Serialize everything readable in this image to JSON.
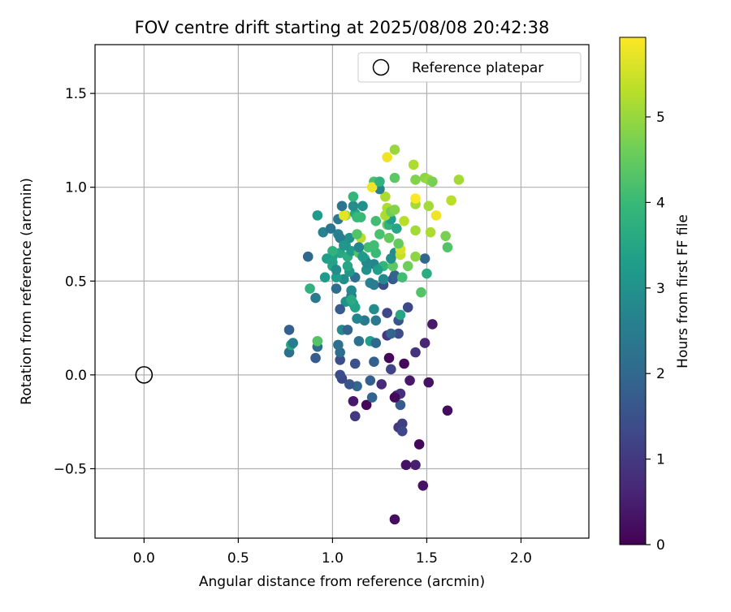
{
  "chart_data": {
    "type": "scatter",
    "title": "FOV centre drift starting at 2025/08/08 20:42:38",
    "xlabel": "Angular distance from reference (arcmin)",
    "ylabel": "Rotation from reference (arcmin)",
    "xlim": [
      -0.26,
      2.36
    ],
    "ylim": [
      -0.87,
      1.76
    ],
    "xticks": [
      "0.0",
      "0.5",
      "1.0",
      "1.5",
      "2.0"
    ],
    "yticks": [
      "−0.5",
      "0.0",
      "0.5",
      "1.0",
      "1.5"
    ],
    "grid": true,
    "legend": {
      "placement": "top-right",
      "entries": [
        "Reference platepar"
      ]
    },
    "reference_point": {
      "x": 0.0,
      "y": 0.0,
      "marker": "open-circle",
      "color": "#000000"
    },
    "colorbar": {
      "label": "Hours from first FF file",
      "range": [
        0,
        5.93
      ],
      "ticks": [
        "0",
        "1",
        "2",
        "3",
        "4",
        "5"
      ],
      "colormap": "viridis"
    },
    "points": [
      [
        1.33,
        -0.77,
        0.2
      ],
      [
        1.48,
        -0.59,
        0.3
      ],
      [
        1.39,
        -0.48,
        0.3
      ],
      [
        1.44,
        -0.48,
        0.5
      ],
      [
        1.46,
        -0.37,
        0.1
      ],
      [
        1.35,
        -0.28,
        1.0
      ],
      [
        1.37,
        -0.26,
        1.1
      ],
      [
        1.37,
        -0.3,
        1.3
      ],
      [
        1.61,
        -0.19,
        0.2
      ],
      [
        1.12,
        -0.22,
        1.0
      ],
      [
        1.18,
        -0.16,
        0.1
      ],
      [
        1.11,
        -0.14,
        0.4
      ],
      [
        1.36,
        -0.16,
        1.7
      ],
      [
        1.34,
        -0.11,
        0.6
      ],
      [
        1.36,
        -0.1,
        0.8
      ],
      [
        1.33,
        -0.12,
        0.1
      ],
      [
        1.21,
        -0.12,
        1.9
      ],
      [
        1.26,
        -0.05,
        0.7
      ],
      [
        1.13,
        -0.06,
        2.0
      ],
      [
        1.09,
        -0.05,
        1.6
      ],
      [
        1.05,
        -0.02,
        1.3
      ],
      [
        1.04,
        0.0,
        1.4
      ],
      [
        1.2,
        -0.03,
        1.8
      ],
      [
        1.41,
        -0.03,
        0.4
      ],
      [
        1.51,
        -0.04,
        0.3
      ],
      [
        1.31,
        0.03,
        1.2
      ],
      [
        1.38,
        0.06,
        0.1
      ],
      [
        1.3,
        0.09,
        0.1
      ],
      [
        1.12,
        0.06,
        1.5
      ],
      [
        1.04,
        0.08,
        1.4
      ],
      [
        1.22,
        0.07,
        1.8
      ],
      [
        0.91,
        0.09,
        1.7
      ],
      [
        1.44,
        0.12,
        0.9
      ],
      [
        1.49,
        0.17,
        0.6
      ],
      [
        1.04,
        0.12,
        2.1
      ],
      [
        1.03,
        0.16,
        2.2
      ],
      [
        0.77,
        0.12,
        2.2
      ],
      [
        0.78,
        0.16,
        3.6
      ],
      [
        0.79,
        0.17,
        2.5
      ],
      [
        0.92,
        0.15,
        2.1
      ],
      [
        0.92,
        0.18,
        4.3
      ],
      [
        1.14,
        0.18,
        2.2
      ],
      [
        1.2,
        0.18,
        3.3
      ],
      [
        1.23,
        0.17,
        2.0
      ],
      [
        1.53,
        0.27,
        0.4
      ],
      [
        0.77,
        0.24,
        1.8
      ],
      [
        1.05,
        0.24,
        2.8
      ],
      [
        1.08,
        0.24,
        1.9
      ],
      [
        1.17,
        0.29,
        2.4
      ],
      [
        1.23,
        0.29,
        2.4
      ],
      [
        1.35,
        0.22,
        1.4
      ],
      [
        1.29,
        0.21,
        1.0
      ],
      [
        1.31,
        0.22,
        1.9
      ],
      [
        1.35,
        0.29,
        1.6
      ],
      [
        1.13,
        0.3,
        2.7
      ],
      [
        1.29,
        0.33,
        1.3
      ],
      [
        1.36,
        0.32,
        3.5
      ],
      [
        1.4,
        0.36,
        1.3
      ],
      [
        1.22,
        0.35,
        2.9
      ],
      [
        1.07,
        0.39,
        3.0
      ],
      [
        1.04,
        0.35,
        1.7
      ],
      [
        0.91,
        0.41,
        2.4
      ],
      [
        0.88,
        0.46,
        3.8
      ],
      [
        1.02,
        0.46,
        2.1
      ],
      [
        1.1,
        0.42,
        2.2
      ],
      [
        1.1,
        0.45,
        2.8
      ],
      [
        1.06,
        0.51,
        2.9
      ],
      [
        1.2,
        0.49,
        2.6
      ],
      [
        1.22,
        0.48,
        2.5
      ],
      [
        1.27,
        0.48,
        1.4
      ],
      [
        1.32,
        0.51,
        1.7
      ],
      [
        1.33,
        0.53,
        1.9
      ],
      [
        1.37,
        0.52,
        4.1
      ],
      [
        1.47,
        0.44,
        4.3
      ],
      [
        1.5,
        0.54,
        3.7
      ],
      [
        1.49,
        0.62,
        2.0
      ],
      [
        0.87,
        0.63,
        2.0
      ],
      [
        0.96,
        0.52,
        3.2
      ],
      [
        1.02,
        0.52,
        3.3
      ],
      [
        1.0,
        0.58,
        3.5
      ],
      [
        1.12,
        0.52,
        2.2
      ],
      [
        1.18,
        0.56,
        3.0
      ],
      [
        1.22,
        0.59,
        2.7
      ],
      [
        1.27,
        0.58,
        3.9
      ],
      [
        1.32,
        0.58,
        4.4
      ],
      [
        1.31,
        0.62,
        3.0
      ],
      [
        1.33,
        0.65,
        2.9
      ],
      [
        1.36,
        0.64,
        5.4
      ],
      [
        1.36,
        0.67,
        5.6
      ],
      [
        1.35,
        0.7,
        4.5
      ],
      [
        1.4,
        0.58,
        4.6
      ],
      [
        1.44,
        0.63,
        4.9
      ],
      [
        1.04,
        0.65,
        3.5
      ],
      [
        1.08,
        0.63,
        3.7
      ],
      [
        1.1,
        0.66,
        3.2
      ],
      [
        1.14,
        0.65,
        4.3
      ],
      [
        1.19,
        0.68,
        4.1
      ],
      [
        1.23,
        0.65,
        4.0
      ],
      [
        1.07,
        0.69,
        3.2
      ],
      [
        1.09,
        0.73,
        3.0
      ],
      [
        1.0,
        0.63,
        3.4
      ],
      [
        1.0,
        0.66,
        3.8
      ],
      [
        0.97,
        0.62,
        3.3
      ],
      [
        1.0,
        0.6,
        3.4
      ],
      [
        1.03,
        0.75,
        2.6
      ],
      [
        1.04,
        0.73,
        2.5
      ],
      [
        1.15,
        0.73,
        5.3
      ],
      [
        1.13,
        0.75,
        4.3
      ],
      [
        1.22,
        0.69,
        4.1
      ],
      [
        1.25,
        0.75,
        4.2
      ],
      [
        1.29,
        0.8,
        4.6
      ],
      [
        1.3,
        0.8,
        3.8
      ],
      [
        1.31,
        0.83,
        3.3
      ],
      [
        1.34,
        0.78,
        3.5
      ],
      [
        1.38,
        0.82,
        5.3
      ],
      [
        1.44,
        0.77,
        5.1
      ],
      [
        1.52,
        0.76,
        5.2
      ],
      [
        1.6,
        0.74,
        4.7
      ],
      [
        1.61,
        0.68,
        4.3
      ],
      [
        0.95,
        0.76,
        2.6
      ],
      [
        0.99,
        0.78,
        2.3
      ],
      [
        1.03,
        0.83,
        2.4
      ],
      [
        1.07,
        0.85,
        5.0
      ],
      [
        1.06,
        0.85,
        5.7
      ],
      [
        1.12,
        0.86,
        3.5
      ],
      [
        1.13,
        0.84,
        4.0
      ],
      [
        1.15,
        0.84,
        4.0
      ],
      [
        1.23,
        0.82,
        4.1
      ],
      [
        1.28,
        0.85,
        5.2
      ],
      [
        1.29,
        0.89,
        5.2
      ],
      [
        1.31,
        0.87,
        4.6
      ],
      [
        1.33,
        0.88,
        4.8
      ],
      [
        0.92,
        0.85,
        3.2
      ],
      [
        1.05,
        0.9,
        2.3
      ],
      [
        1.11,
        0.9,
        2.9
      ],
      [
        1.16,
        0.9,
        3.0
      ],
      [
        1.11,
        0.95,
        3.9
      ],
      [
        1.28,
        0.95,
        5.2
      ],
      [
        1.25,
        0.99,
        2.6
      ],
      [
        1.22,
        1.03,
        4.2
      ],
      [
        1.21,
        1.0,
        5.8
      ],
      [
        1.25,
        1.03,
        3.8
      ],
      [
        1.33,
        1.05,
        4.4
      ],
      [
        1.44,
        0.91,
        5.1
      ],
      [
        1.44,
        0.94,
        5.9
      ],
      [
        1.51,
        0.9,
        5.1
      ],
      [
        1.55,
        0.85,
        5.8
      ],
      [
        1.44,
        1.04,
        4.8
      ],
      [
        1.49,
        1.05,
        4.9
      ],
      [
        1.51,
        1.04,
        5.0
      ],
      [
        1.53,
        1.03,
        4.7
      ],
      [
        1.63,
        0.93,
        5.3
      ],
      [
        1.67,
        1.04,
        5.1
      ],
      [
        1.29,
        1.16,
        5.8
      ],
      [
        1.33,
        1.2,
        5.0
      ],
      [
        1.43,
        1.12,
        5.2
      ],
      [
        1.06,
        0.69,
        3.1
      ],
      [
        1.17,
        0.62,
        3.6
      ],
      [
        1.27,
        0.51,
        2.8
      ],
      [
        1.11,
        0.38,
        3.2
      ],
      [
        1.12,
        0.36,
        3.4
      ],
      [
        1.1,
        0.4,
        3.6
      ],
      [
        1.18,
        0.6,
        2.8
      ],
      [
        1.09,
        0.55,
        3.1
      ],
      [
        1.14,
        0.68,
        2.7
      ],
      [
        1.08,
        0.58,
        3.5
      ],
      [
        1.16,
        0.63,
        3.2
      ],
      [
        1.02,
        0.56,
        2.9
      ],
      [
        1.24,
        0.56,
        3.3
      ],
      [
        1.3,
        0.73,
        4.5
      ]
    ]
  }
}
